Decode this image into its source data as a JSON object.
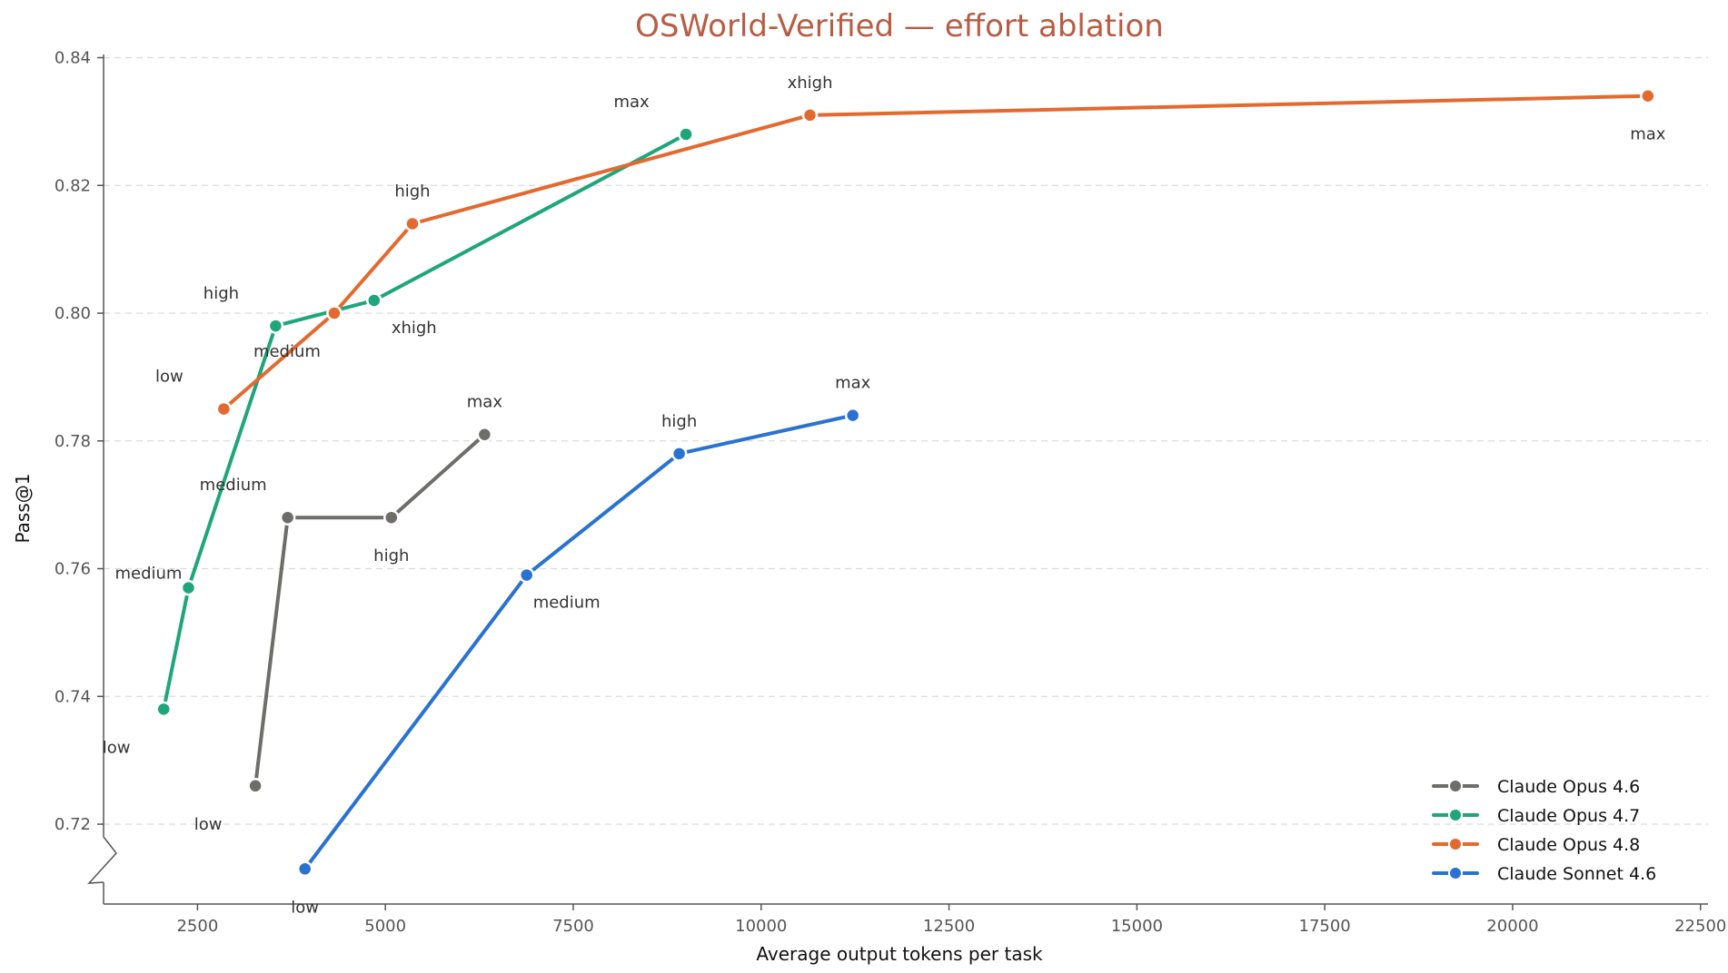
{
  "chart_data": {
    "type": "line",
    "title": "OSWorld-Verified — effort ablation",
    "xlabel": "Average output tokens per task",
    "ylabel": "Pass@1",
    "xlim": [
      1250,
      22600
    ],
    "ylim": [
      0.7075,
      0.8405
    ],
    "xticks": [
      2500,
      5000,
      7500,
      10000,
      12500,
      15000,
      17500,
      20000,
      22500
    ],
    "yticks": [
      0.72,
      0.74,
      0.76,
      0.78,
      0.8,
      0.82,
      0.84
    ],
    "xtick_labels": [
      "2500",
      "5000",
      "7500",
      "10000",
      "12500",
      "15000",
      "17500",
      "20000",
      "22500"
    ],
    "ytick_labels": [
      "0.72",
      "0.74",
      "0.76",
      "0.78",
      "0.80",
      "0.82",
      "0.84"
    ],
    "y_axis_break": true,
    "grid": "y-dashed",
    "legend_position": "bottom-right",
    "series": [
      {
        "name": "Claude Opus 4.6",
        "color": "#6e6d69",
        "points": [
          {
            "x": 3270,
            "y": 0.726,
            "label": "low",
            "label_pos": "below-left"
          },
          {
            "x": 3700,
            "y": 0.768,
            "label": "medium",
            "label_pos": "above-left"
          },
          {
            "x": 5080,
            "y": 0.768,
            "label": "high",
            "label_pos": "below"
          },
          {
            "x": 6320,
            "y": 0.781,
            "label": "max",
            "label_pos": "above"
          }
        ]
      },
      {
        "name": "Claude Opus 4.7",
        "color": "#1ea67a",
        "points": [
          {
            "x": 2050,
            "y": 0.738,
            "label": "low",
            "label_pos": "below-left"
          },
          {
            "x": 2380,
            "y": 0.757,
            "label": "medium",
            "label_pos": "left"
          },
          {
            "x": 3540,
            "y": 0.798,
            "label": "high",
            "label_pos": "above-left"
          },
          {
            "x": 4850,
            "y": 0.802,
            "label": "xhigh",
            "label_pos": "below-right"
          },
          {
            "x": 9000,
            "y": 0.828,
            "label": "max",
            "label_pos": "above-left"
          }
        ]
      },
      {
        "name": "Claude Opus 4.8",
        "color": "#e4692f",
        "points": [
          {
            "x": 2850,
            "y": 0.785,
            "label": "low",
            "label_pos": "above-left"
          },
          {
            "x": 4320,
            "y": 0.8,
            "label": "medium",
            "label_pos": "below-left"
          },
          {
            "x": 5360,
            "y": 0.814,
            "label": "high",
            "label_pos": "above"
          },
          {
            "x": 10650,
            "y": 0.831,
            "label": "xhigh",
            "label_pos": "above"
          },
          {
            "x": 21800,
            "y": 0.834,
            "label": "max",
            "label_pos": "below"
          }
        ]
      },
      {
        "name": "Claude Sonnet 4.6",
        "color": "#2a72d2",
        "points": [
          {
            "x": 3930,
            "y": 0.713,
            "label": "low",
            "label_pos": "below"
          },
          {
            "x": 6880,
            "y": 0.759,
            "label": "medium",
            "label_pos": "below-right"
          },
          {
            "x": 8910,
            "y": 0.778,
            "label": "high",
            "label_pos": "above"
          },
          {
            "x": 11220,
            "y": 0.784,
            "label": "max",
            "label_pos": "above"
          }
        ]
      }
    ]
  }
}
